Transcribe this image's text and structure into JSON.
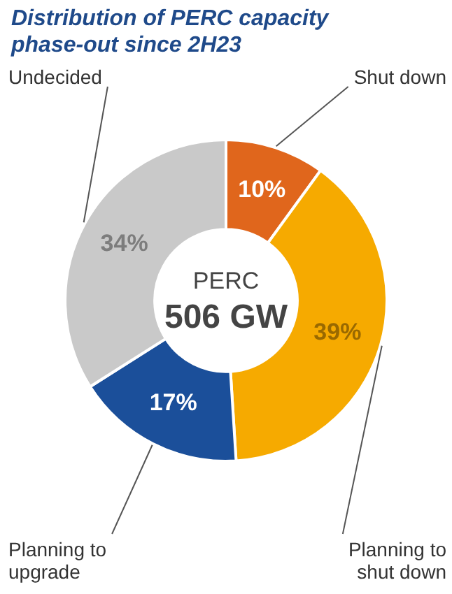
{
  "chart_data": {
    "type": "donut",
    "title": "Distribution of PERC capacity phase-out since 2H23",
    "categories": [
      "Shut down",
      "Planning to shut down",
      "Planning to upgrade",
      "Undecided"
    ],
    "values": [
      10,
      39,
      17,
      34
    ],
    "colors": [
      "#e0661c",
      "#f6aa00",
      "#1b4f9a",
      "#c9c9c9"
    ],
    "value_labels": [
      "10%",
      "39%",
      "17%",
      "34%"
    ],
    "annotations": [
      "PERC",
      "506 GW"
    ],
    "legend": false
  }
}
